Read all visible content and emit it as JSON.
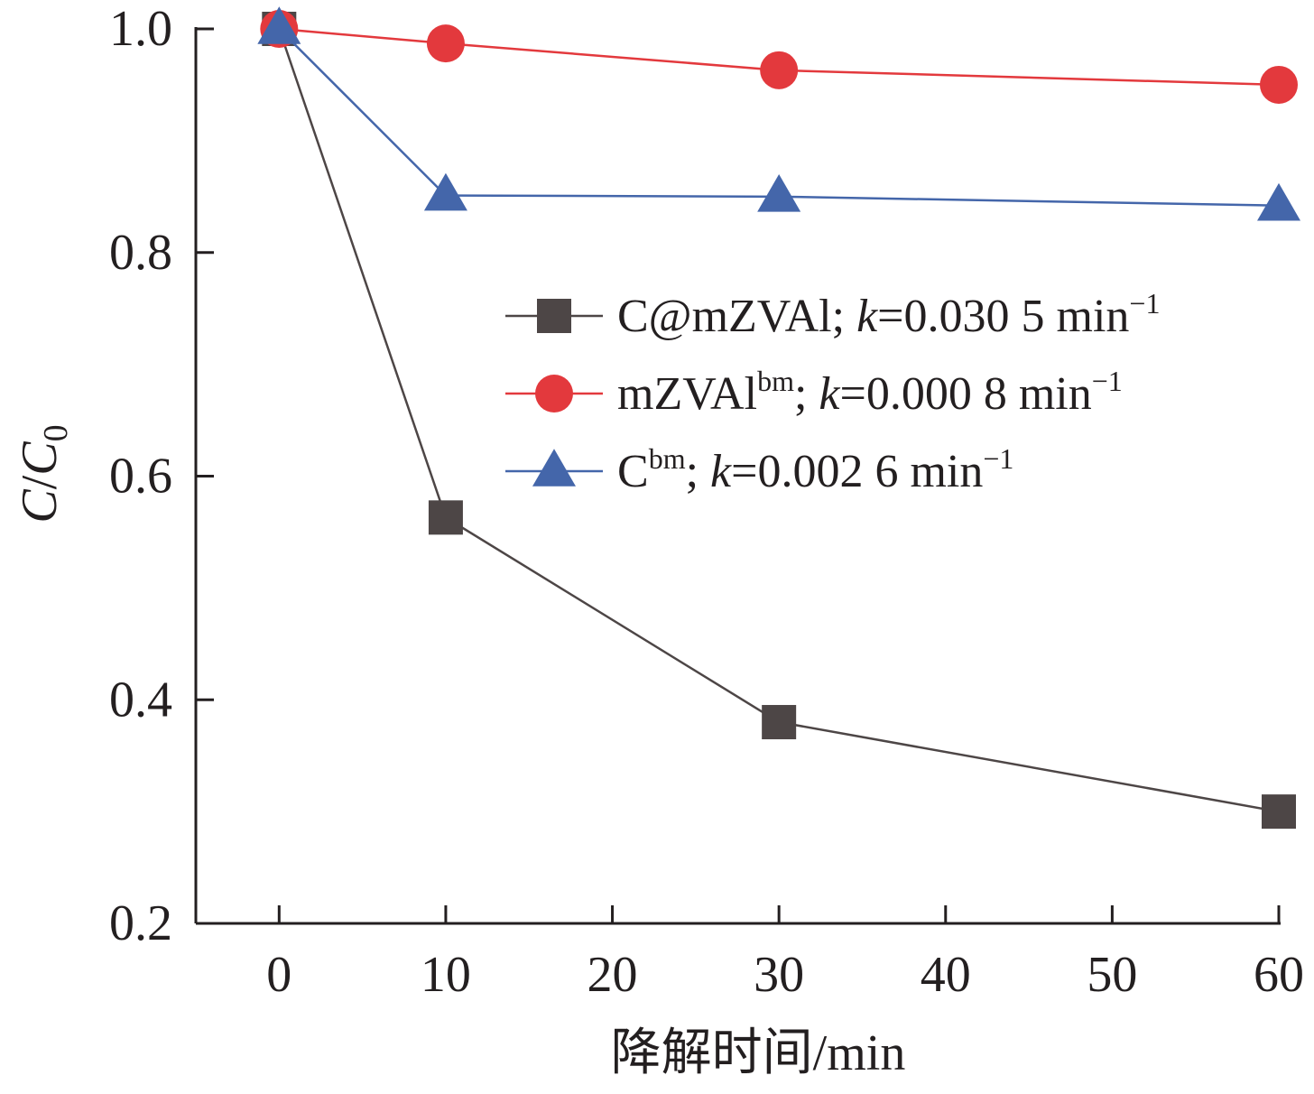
{
  "chart_data": {
    "type": "line",
    "x": [
      0,
      10,
      30,
      60
    ],
    "xlim": [
      -5,
      60
    ],
    "ylim": [
      0.2,
      1.0
    ],
    "xticks": [
      "0",
      "10",
      "20",
      "30",
      "40",
      "50",
      "60"
    ],
    "yticks": [
      "0.2",
      "0.4",
      "0.6",
      "0.8",
      "1.0"
    ],
    "xlabel": "降解时间/min",
    "ylabel": "C/C0",
    "legend_position": "center-right",
    "grid": false,
    "series": [
      {
        "name": "C@mZVAl; k=0.030 5 min−1",
        "legend_parts": {
          "main": "C@mZVAl; ",
          "k": "k",
          "rest": "=0.030 5 min",
          "sup": "−1"
        },
        "values": [
          1.0,
          0.563,
          0.38,
          0.3
        ],
        "marker": "square",
        "color": "#4d4646"
      },
      {
        "name": "mZVAlbm; k=0.000 8 min−1",
        "legend_parts": {
          "main": "mZVAl",
          "sup1": "bm",
          "sep": "; ",
          "k": "k",
          "rest": "=0.000 8 min",
          "sup": "−1"
        },
        "values": [
          1.0,
          0.987,
          0.963,
          0.95
        ],
        "marker": "circle",
        "color": "#e3393d"
      },
      {
        "name": "Cbm; k=0.002 6 min−1",
        "legend_parts": {
          "main": "C",
          "sup1": "bm",
          "sep": "; ",
          "k": "k",
          "rest": "=0.002 6 min",
          "sup": "−1"
        },
        "values": [
          1.0,
          0.851,
          0.85,
          0.842
        ],
        "marker": "triangle",
        "color": "#4466aa"
      }
    ]
  }
}
